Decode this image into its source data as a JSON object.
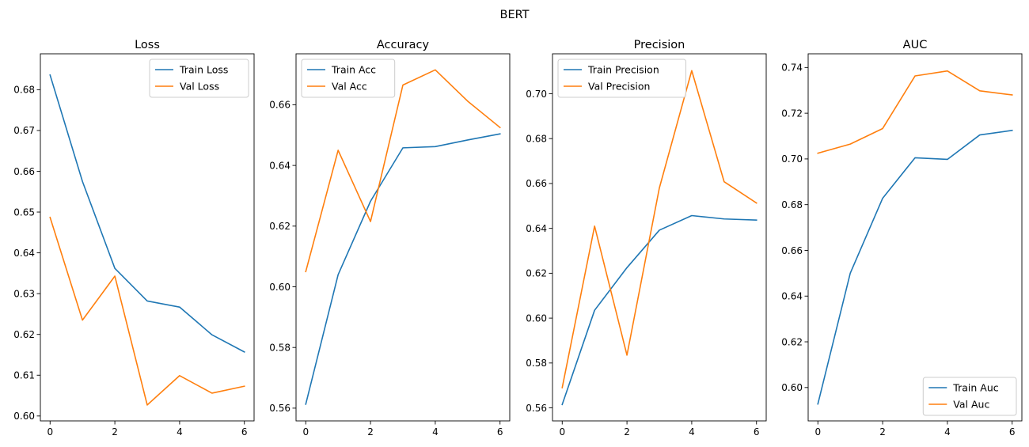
{
  "figure": {
    "suptitle": "BERT"
  },
  "colors": {
    "train": "#1f77b4",
    "val": "#ff7f0e"
  },
  "chart_data": [
    {
      "type": "line",
      "title": "Loss",
      "x": [
        0,
        1,
        2,
        3,
        4,
        5,
        6
      ],
      "xticks": [
        0,
        2,
        4,
        6
      ],
      "ylim": [
        0.5988,
        0.6888
      ],
      "yticks": [
        0.6,
        0.61,
        0.62,
        0.63,
        0.64,
        0.65,
        0.66,
        0.67,
        0.68
      ],
      "ytick_labels": [
        "0.60",
        "0.61",
        "0.62",
        "0.63",
        "0.64",
        "0.65",
        "0.66",
        "0.67",
        "0.68"
      ],
      "legend": "upper-right",
      "series": [
        {
          "name": "Train Loss",
          "color": "#1f77b4",
          "values": [
            0.6836,
            0.6575,
            0.6362,
            0.6282,
            0.6267,
            0.6199,
            0.6157
          ]
        },
        {
          "name": "Val Loss",
          "color": "#ff7f0e",
          "values": [
            0.6487,
            0.6235,
            0.6343,
            0.6027,
            0.6099,
            0.6056,
            0.6073
          ]
        }
      ]
    },
    {
      "type": "line",
      "title": "Accuracy",
      "x": [
        0,
        1,
        2,
        3,
        4,
        5,
        6
      ],
      "xticks": [
        0,
        2,
        4,
        6
      ],
      "ylim": [
        0.5558,
        0.6768
      ],
      "yticks": [
        0.56,
        0.58,
        0.6,
        0.62,
        0.64,
        0.66
      ],
      "ytick_labels": [
        "0.56",
        "0.58",
        "0.60",
        "0.62",
        "0.64",
        "0.66"
      ],
      "legend": "upper-left",
      "series": [
        {
          "name": "Train Acc",
          "color": "#1f77b4",
          "values": [
            0.5613,
            0.604,
            0.6282,
            0.6458,
            0.6462,
            0.6484,
            0.6504
          ]
        },
        {
          "name": "Val Acc",
          "color": "#ff7f0e",
          "values": [
            0.605,
            0.645,
            0.6215,
            0.6665,
            0.6715,
            0.6612,
            0.6525
          ]
        }
      ]
    },
    {
      "type": "line",
      "title": "Precision",
      "x": [
        0,
        1,
        2,
        3,
        4,
        5,
        6
      ],
      "xticks": [
        0,
        2,
        4,
        6
      ],
      "ylim": [
        0.5542,
        0.7178
      ],
      "yticks": [
        0.56,
        0.58,
        0.6,
        0.62,
        0.64,
        0.66,
        0.68,
        0.7
      ],
      "ytick_labels": [
        "0.56",
        "0.58",
        "0.60",
        "0.62",
        "0.64",
        "0.66",
        "0.68",
        "0.70"
      ],
      "legend": "upper-left",
      "series": [
        {
          "name": "Train Precision",
          "color": "#1f77b4",
          "values": [
            0.5615,
            0.6035,
            0.6225,
            0.6392,
            0.6457,
            0.6442,
            0.6437
          ]
        },
        {
          "name": "Val Precision",
          "color": "#ff7f0e",
          "values": [
            0.569,
            0.641,
            0.5835,
            0.658,
            0.7103,
            0.6608,
            0.6513
          ]
        }
      ]
    },
    {
      "type": "line",
      "title": "AUC",
      "x": [
        0,
        1,
        2,
        3,
        4,
        5,
        6
      ],
      "xticks": [
        0,
        2,
        4,
        6
      ],
      "ylim": [
        0.5854,
        0.746
      ],
      "yticks": [
        0.6,
        0.62,
        0.64,
        0.66,
        0.68,
        0.7,
        0.72,
        0.74
      ],
      "ytick_labels": [
        "0.60",
        "0.62",
        "0.64",
        "0.66",
        "0.68",
        "0.70",
        "0.72",
        "0.74"
      ],
      "legend": "lower-right",
      "series": [
        {
          "name": "Train Auc",
          "color": "#1f77b4",
          "values": [
            0.5928,
            0.65,
            0.6828,
            0.7005,
            0.6998,
            0.7105,
            0.7125
          ]
        },
        {
          "name": "Val Auc",
          "color": "#ff7f0e",
          "values": [
            0.7025,
            0.7065,
            0.7133,
            0.7363,
            0.7385,
            0.7298,
            0.728
          ]
        }
      ]
    }
  ]
}
